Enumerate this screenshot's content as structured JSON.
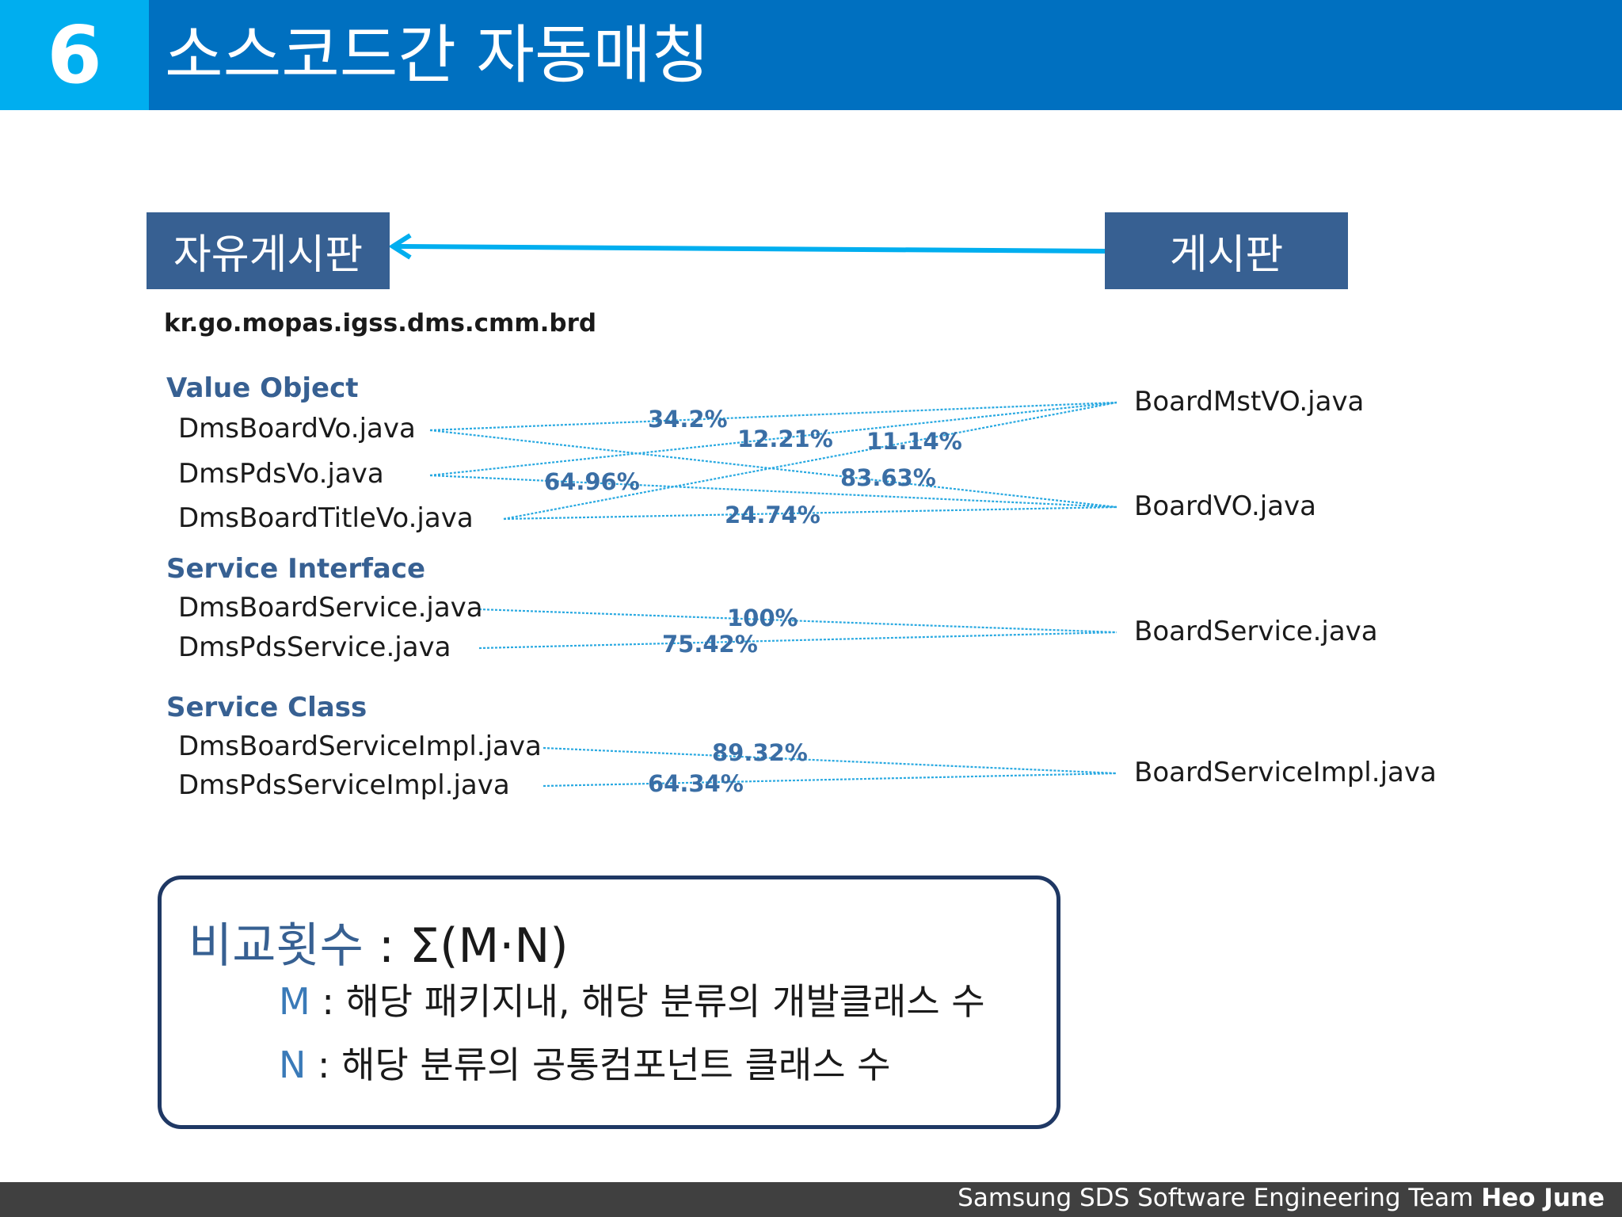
{
  "header": {
    "number": "6",
    "title": "소스코드간 자동매칭"
  },
  "packages": {
    "left": "자유게시판",
    "right": "게시판",
    "path": "kr.go.mopas.igss.dms.cmm.brd"
  },
  "categories": {
    "value_object": "Value Object",
    "service_interface": "Service Interface",
    "service_class": "Service Class"
  },
  "left_files": {
    "dms_board_vo": "DmsBoardVo.java",
    "dms_pds_vo": "DmsPdsVo.java",
    "dms_board_title_vo": "DmsBoardTitleVo.java",
    "dms_board_service": "DmsBoardService.java",
    "dms_pds_service": "DmsPdsService.java",
    "dms_board_service_impl": "DmsBoardServiceImpl.java",
    "dms_pds_service_impl": "DmsPdsServiceImpl.java"
  },
  "right_files": {
    "board_mst_vo": "BoardMstVO.java",
    "board_vo": "BoardVO.java",
    "board_service": "BoardService.java",
    "board_service_impl": "BoardServiceImpl.java"
  },
  "matches": [
    {
      "from": "DmsBoardVo.java",
      "to": "BoardMstVO.java",
      "pct": "34.2%"
    },
    {
      "from": "DmsPdsVo.java",
      "to": "BoardMstVO.java",
      "pct": "12.21%"
    },
    {
      "from": "DmsBoardTitleVo.java",
      "to": "BoardMstVO.java",
      "pct": "11.14%"
    },
    {
      "from": "DmsPdsVo.java",
      "to": "BoardVO.java",
      "pct": "64.96%"
    },
    {
      "from": "DmsBoardVo.java",
      "to": "BoardVO.java",
      "pct": "83.63%"
    },
    {
      "from": "DmsBoardTitleVo.java",
      "to": "BoardVO.java",
      "pct": "24.74%"
    },
    {
      "from": "DmsBoardService.java",
      "to": "BoardService.java",
      "pct": "100%"
    },
    {
      "from": "DmsPdsService.java",
      "to": "BoardService.java",
      "pct": "75.42%"
    },
    {
      "from": "DmsBoardServiceImpl.java",
      "to": "BoardServiceImpl.java",
      "pct": "89.32%"
    },
    {
      "from": "DmsPdsServiceImpl.java",
      "to": "BoardServiceImpl.java",
      "pct": "64.34%"
    }
  ],
  "formula": {
    "label": "비교횟수",
    "expr": " : Σ(M·N)",
    "m_var": "M",
    "m_desc": " : 해당 패키지내, 해당 분류의 개발클래스 수",
    "n_var": "N",
    "n_desc": " : 해당 분류의 공통컴포넌트 클래스 수"
  },
  "footer": {
    "team": "Samsung SDS Software Engineering Team ",
    "author": "Heo June"
  },
  "colors": {
    "accent": "#00AEEF",
    "header": "#0070C0",
    "box": "#376092",
    "line": "#00AEEF"
  }
}
